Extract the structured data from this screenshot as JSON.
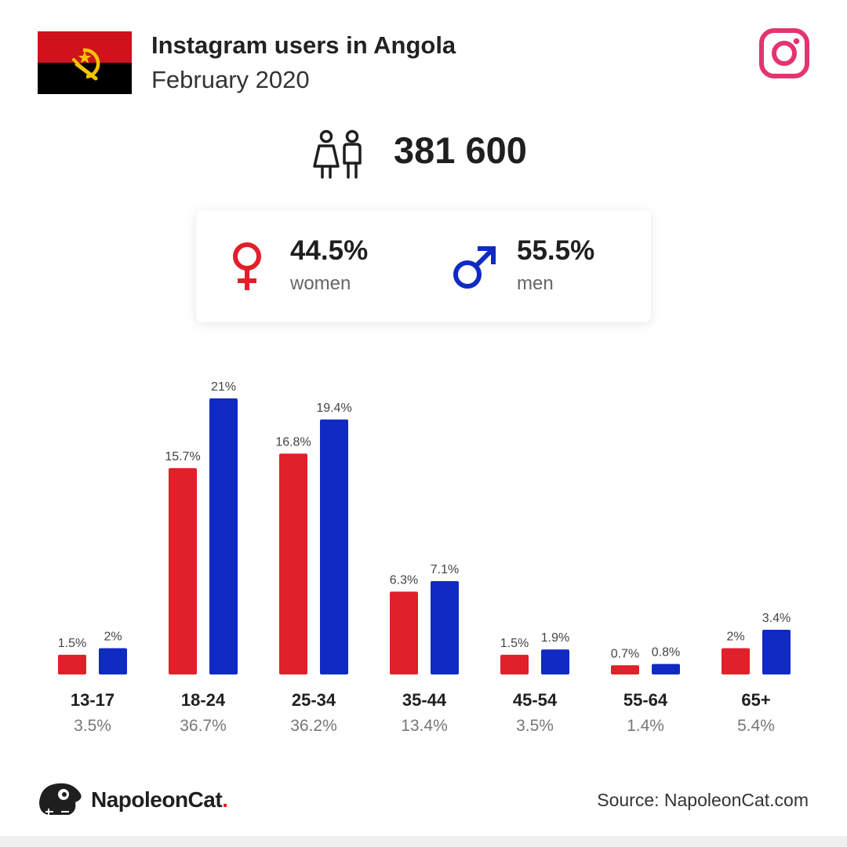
{
  "header": {
    "title": "Instagram users in Angola",
    "subtitle": "February 2020"
  },
  "total": {
    "value": "381 600"
  },
  "gender": {
    "women": {
      "pct": "44.5%",
      "label": "women",
      "color": "#e0202a"
    },
    "men": {
      "pct": "55.5%",
      "label": "men",
      "color": "#0f2bc3"
    }
  },
  "footer": {
    "brand": "NapoleonCat",
    "brand_dot": ".",
    "source": "Source: NapoleonCat.com"
  },
  "icons": {
    "flag": "angola-flag-icon",
    "instagram": "instagram-logo-icon",
    "people": "people-icon",
    "female": "female-symbol-icon",
    "male": "male-symbol-icon",
    "brand": "napoleoncat-logo-icon"
  },
  "chart_data": {
    "type": "bar",
    "categories": [
      "13-17",
      "18-24",
      "25-34",
      "35-44",
      "45-54",
      "55-64",
      "65+"
    ],
    "totals": [
      "3.5%",
      "36.7%",
      "36.2%",
      "13.4%",
      "3.5%",
      "1.4%",
      "5.4%"
    ],
    "series": [
      {
        "values": [
          1.5,
          15.7,
          16.8,
          6.3,
          1.5,
          0.7,
          2
        ],
        "labels": [
          "1.5%",
          "15.7%",
          "16.8%",
          "6.3%",
          "1.5%",
          "0.7%",
          "2%"
        ],
        "color": "#e0202a"
      },
      {
        "values": [
          2,
          21,
          19.4,
          7.1,
          1.9,
          0.8,
          3.4
        ],
        "labels": [
          "2%",
          "21%",
          "19.4%",
          "7.1%",
          "1.9%",
          "0.8%",
          "3.4%"
        ],
        "color": "#0f2bc3"
      }
    ],
    "ylim": [
      0,
      21
    ]
  }
}
